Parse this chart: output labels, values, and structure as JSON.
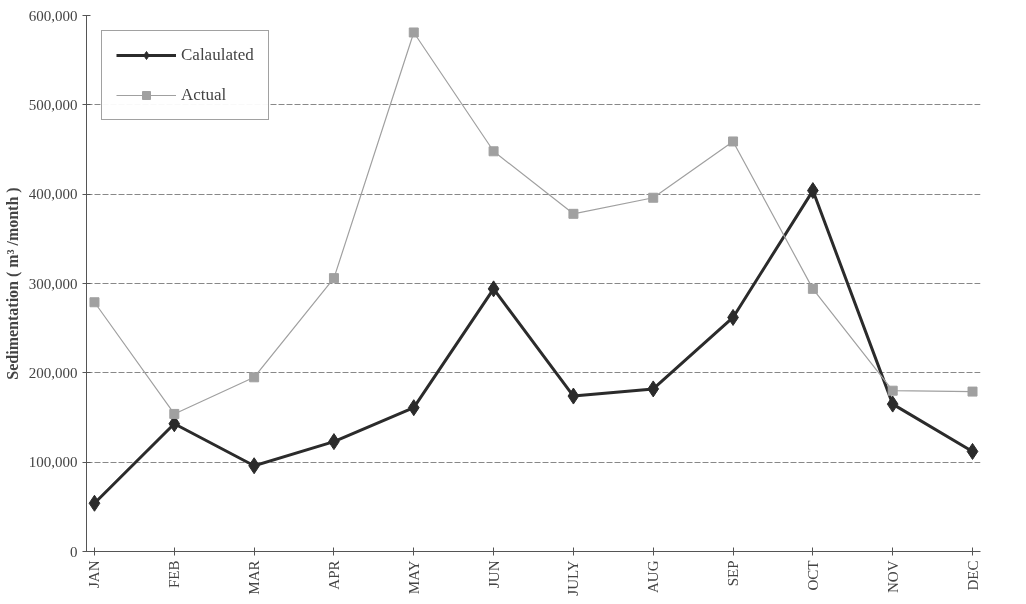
{
  "chart_data": {
    "type": "line",
    "ylabel": "Sedimentation ( m³ /month )",
    "categories": [
      "JAN",
      "FEB",
      "MAR",
      "APR",
      "MAY",
      "JUN",
      "JULY",
      "AUG",
      "SEP",
      "OCT",
      "NOV",
      "DEC"
    ],
    "series": [
      {
        "name": "Calaulated",
        "color": "#2b2b2b",
        "marker": "diamond",
        "values": [
          54000,
          143000,
          96000,
          123000,
          161000,
          294000,
          174000,
          182000,
          262000,
          404000,
          165000,
          112000
        ]
      },
      {
        "name": "Actual",
        "color": "#a0a0a0",
        "marker": "square",
        "values": [
          279000,
          154000,
          195000,
          306000,
          581000,
          448000,
          378000,
          396000,
          459000,
          294000,
          180000,
          179000
        ]
      }
    ],
    "ylim": [
      0,
      600000
    ],
    "yticks": [
      {
        "value": 0,
        "label": "0"
      },
      {
        "value": 100000,
        "label": "100,000"
      },
      {
        "value": 200000,
        "label": "200,000"
      },
      {
        "value": 300000,
        "label": "300,000"
      },
      {
        "value": 400000,
        "label": "400,000"
      },
      {
        "value": 500000,
        "label": "500,000"
      },
      {
        "value": 600000,
        "label": "600,000"
      }
    ],
    "grid": "y",
    "legend": "top left",
    "line_style": "solid"
  }
}
